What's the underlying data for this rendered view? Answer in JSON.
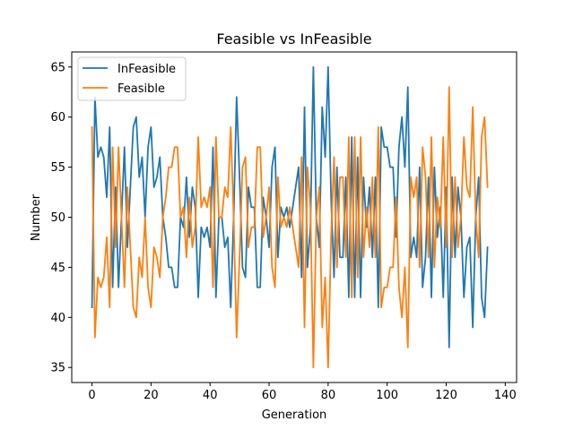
{
  "chart_data": {
    "type": "line",
    "title": "Feasible vs InFeasible",
    "xlabel": "Generation",
    "ylabel": "Number",
    "xlim": [
      -6.85,
      143.85
    ],
    "ylim": [
      33.5,
      66.5
    ],
    "xticks": [
      0,
      20,
      40,
      60,
      80,
      100,
      120,
      140
    ],
    "yticks": [
      35,
      40,
      45,
      50,
      55,
      60,
      65
    ],
    "grid": false,
    "legend": {
      "position": "top-left"
    },
    "series": [
      {
        "name": "InFeasible",
        "color": "#1f77b4",
        "values": [
          41,
          62,
          56,
          57,
          56,
          52,
          59,
          43,
          53,
          43,
          50,
          57,
          47,
          53,
          59,
          60,
          54,
          56,
          50,
          57,
          59,
          53,
          54,
          56,
          50,
          48,
          45,
          45,
          43,
          43,
          50,
          49,
          54,
          48,
          53,
          51,
          42,
          49,
          48,
          49,
          47,
          57,
          42,
          50,
          50,
          47,
          48,
          41,
          50,
          62,
          54,
          45,
          44,
          53,
          51,
          51,
          43,
          43,
          52,
          50,
          47,
          55,
          57,
          46,
          51,
          50,
          51,
          49,
          51,
          53,
          55,
          44,
          61,
          45,
          49,
          65,
          50,
          47,
          61,
          56,
          65,
          52,
          44,
          55,
          46,
          46,
          54,
          42,
          58,
          42,
          56,
          42,
          54,
          49,
          53,
          46,
          54,
          41,
          59,
          57,
          57,
          55,
          55,
          48,
          57,
          60,
          55,
          63,
          46,
          48,
          46,
          55,
          43,
          46,
          54,
          42,
          55,
          48,
          51,
          42,
          53,
          37,
          54,
          46,
          53,
          50,
          42,
          47,
          48,
          39,
          50,
          54,
          42,
          40,
          47
        ],
        "notes": "values listed for generation 0 onward"
      },
      {
        "name": "Feasible",
        "color": "#ff7f0e",
        "values": [
          59,
          38,
          44,
          43,
          44,
          48,
          41,
          57,
          47,
          57,
          50,
          43,
          53,
          47,
          41,
          40,
          46,
          44,
          50,
          43,
          41,
          47,
          46,
          44,
          50,
          52,
          55,
          55,
          57,
          57,
          50,
          51,
          46,
          52,
          47,
          49,
          58,
          51,
          52,
          51,
          53,
          43,
          58,
          50,
          50,
          53,
          52,
          59,
          50,
          38,
          46,
          55,
          56,
          47,
          49,
          49,
          57,
          57,
          48,
          50,
          53,
          45,
          43,
          54,
          49,
          50,
          49,
          51,
          49,
          47,
          45,
          56,
          39,
          55,
          51,
          35,
          50,
          53,
          39,
          44,
          35,
          48,
          56,
          45,
          54,
          54,
          46,
          58,
          42,
          58,
          44,
          58,
          46,
          51,
          47,
          54,
          46,
          59,
          41,
          43,
          43,
          45,
          45,
          52,
          43,
          40,
          45,
          37,
          54,
          52,
          54,
          45,
          57,
          54,
          46,
          58,
          45,
          52,
          49,
          58,
          47,
          63,
          46,
          54,
          47,
          50,
          58,
          53,
          52,
          61,
          50,
          46,
          58,
          60,
          53
        ],
        "notes": "values listed for generation 0 onward"
      }
    ]
  }
}
